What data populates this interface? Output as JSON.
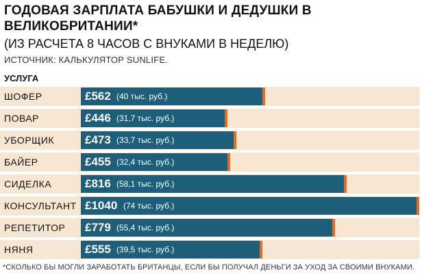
{
  "title": "ГОДОВАЯ ЗАРПЛАТА БАБУШКИ И ДЕДУШКИ В ВЕЛИКОБРИТАНИИ*",
  "subtitle": "(ИЗ РАСЧЕТА 8 ЧАСОВ С ВНУКАМИ В НЕДЕЛЮ)",
  "source": "ИСТОЧНИК: КАЛЬКУЛЯТОР SUNLIFE.",
  "footnote": "*СКОЛЬКО БЫ МОГЛИ ЗАРАБОТАТЬ БРИТАНЦЫ, ЕСЛИ БЫ ПОЛУЧАЛ ДЕНЬГИ ЗА УХОД ЗА СВОИМИ ВНУКАМИ.",
  "colors": {
    "bar": "#1d5f7a",
    "cap": "#ea6a1d",
    "track": "#f7e6d2"
  },
  "chart_data": {
    "type": "bar",
    "orientation": "horizontal",
    "category_header": "УСЛУГА",
    "categories": [
      "ШОФЕР",
      "ПОВАР",
      "УБОРЩИК",
      "БАЙЕР",
      "СИДЕЛКА",
      "КОНСУЛЬТАНТ",
      "РЕПЕТИТОР",
      "НЯНЯ"
    ],
    "values": [
      562,
      446,
      473,
      455,
      816,
      1040,
      779,
      555
    ],
    "value_labels": [
      "£562",
      "£446",
      "£473",
      "£455",
      "£816",
      "£1040",
      "£779",
      "£555"
    ],
    "secondary_labels": [
      "(40 тыс. руб.)",
      "(31,7 тыс. руб.)",
      "(33,7 тыс. руб.)",
      "(32,4 тыс. руб.)",
      "(58,1 тыс. руб.)",
      "(74 тыс. руб.)",
      "(55,4 тыс. руб.)",
      "(39,5 тыс. руб.)"
    ],
    "xlim": [
      0,
      1040
    ],
    "grid": false,
    "legend": "none"
  }
}
